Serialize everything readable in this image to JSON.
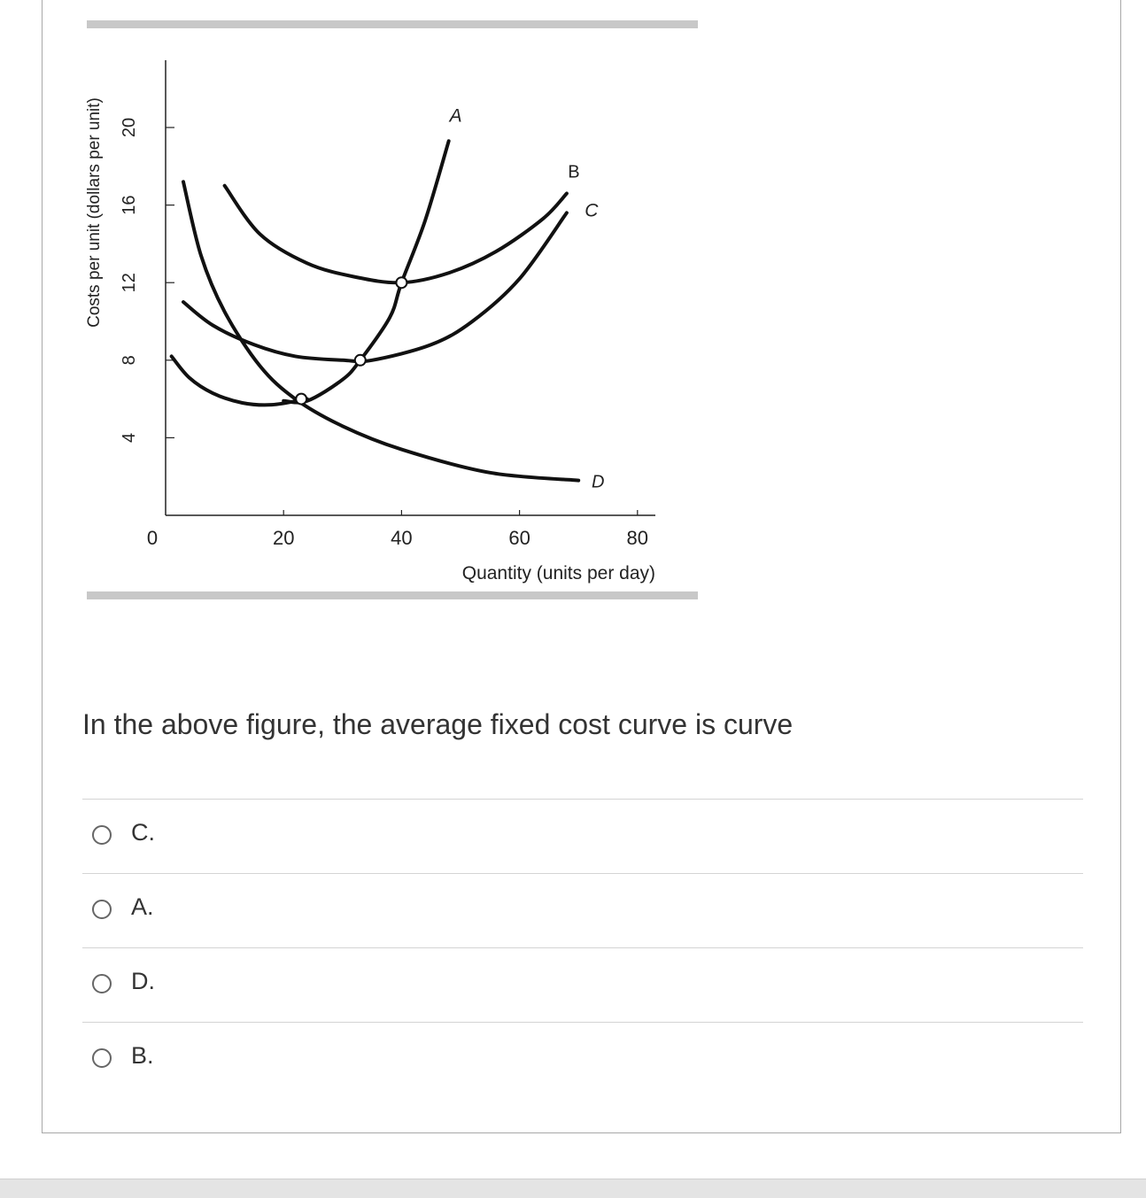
{
  "chart_data": {
    "type": "line",
    "xlabel": "Quantity (units per day)",
    "ylabel": "Costs per unit (dollars per unit)",
    "xlim": [
      0,
      80
    ],
    "ylim": [
      0,
      22
    ],
    "x_ticks": [
      "0",
      "20",
      "40",
      "60",
      "80"
    ],
    "y_ticks": [
      "4",
      "8",
      "12",
      "16",
      "20"
    ],
    "grid": false,
    "series": [
      {
        "name": "A",
        "points": [
          [
            20,
            5.9
          ],
          [
            24,
            5.9
          ],
          [
            30,
            7.0
          ],
          [
            33,
            8.0
          ],
          [
            38,
            10.2
          ],
          [
            40,
            12.0
          ],
          [
            44,
            15.2
          ],
          [
            48,
            19.3
          ]
        ]
      },
      {
        "name": "B",
        "points": [
          [
            10,
            17.0
          ],
          [
            16,
            14.5
          ],
          [
            24,
            13.0
          ],
          [
            32,
            12.3
          ],
          [
            40,
            12.0
          ],
          [
            48,
            12.5
          ],
          [
            56,
            13.6
          ],
          [
            64,
            15.3
          ],
          [
            68,
            16.6
          ]
        ]
      },
      {
        "name": "C",
        "points": [
          [
            3,
            11.0
          ],
          [
            8,
            9.8
          ],
          [
            15,
            8.8
          ],
          [
            22,
            8.2
          ],
          [
            30,
            8.0
          ],
          [
            35,
            8.0
          ],
          [
            45,
            8.8
          ],
          [
            52,
            10.0
          ],
          [
            60,
            12.2
          ],
          [
            68,
            15.6
          ]
        ]
      },
      {
        "name": "D",
        "points": [
          [
            3,
            17.2
          ],
          [
            6,
            13.4
          ],
          [
            10,
            10.5
          ],
          [
            16,
            7.7
          ],
          [
            22,
            6.0
          ],
          [
            30,
            4.6
          ],
          [
            40,
            3.4
          ],
          [
            55,
            2.2
          ],
          [
            70,
            1.8
          ]
        ]
      },
      {
        "name": "",
        "points": [
          [
            1,
            8.2
          ],
          [
            4,
            7.1
          ],
          [
            8,
            6.3
          ],
          [
            13,
            5.8
          ],
          [
            18,
            5.7
          ],
          [
            24,
            6.0
          ]
        ]
      }
    ],
    "marked_points": [
      [
        23,
        6.0
      ],
      [
        33,
        8.0
      ],
      [
        40,
        12.0
      ]
    ]
  },
  "question": {
    "text": "In the above figure, the average fixed cost curve is curve"
  },
  "options": [
    {
      "label": "C."
    },
    {
      "label": "A."
    },
    {
      "label": "D."
    },
    {
      "label": "B."
    }
  ]
}
